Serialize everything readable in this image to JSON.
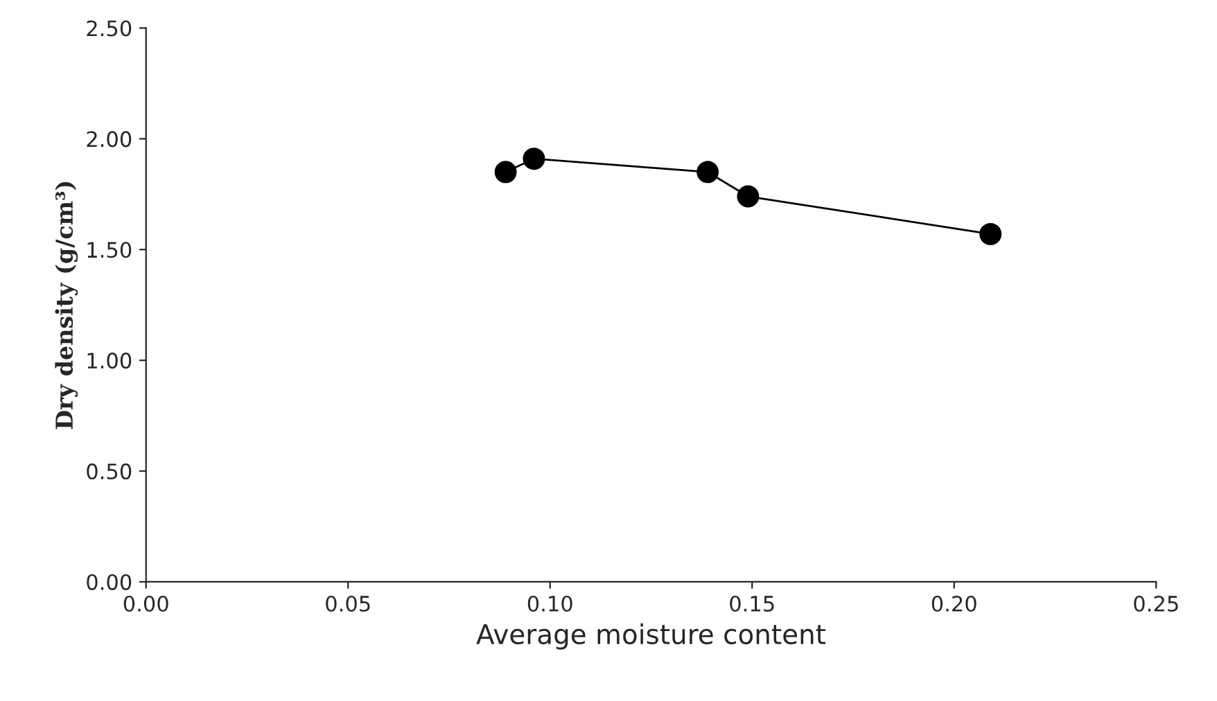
{
  "chart_data": {
    "type": "line",
    "xlabel": "Average moisture content",
    "ylabel": "Dry density (g/cm³)",
    "x": [
      0.089,
      0.096,
      0.139,
      0.149,
      0.209
    ],
    "series": [
      {
        "color": "#000000",
        "values": [
          1.85,
          1.91,
          1.85,
          1.74,
          1.57
        ]
      }
    ],
    "xlim": [
      0,
      0.25
    ],
    "ylim": [
      0,
      2.5
    ],
    "xticks": [
      {
        "value": 0,
        "label": "0.00"
      },
      {
        "value": 0.05,
        "label": "0.05"
      },
      {
        "value": 0.1,
        "label": "0.10"
      },
      {
        "value": 0.15,
        "label": "0.15"
      },
      {
        "value": 0.2,
        "label": "0.20"
      },
      {
        "value": 0.25,
        "label": "0.25"
      }
    ],
    "yticks": [
      {
        "value": 0,
        "label": "0.00"
      },
      {
        "value": 0.5,
        "label": "0.50"
      },
      {
        "value": 1,
        "label": "1.00"
      },
      {
        "value": 1.5,
        "label": "1.50"
      },
      {
        "value": 2,
        "label": "2.00"
      },
      {
        "value": 2.5,
        "label": "2.50"
      }
    ],
    "marker": "circle",
    "line_style": "solid",
    "grid": false,
    "legend": false
  }
}
